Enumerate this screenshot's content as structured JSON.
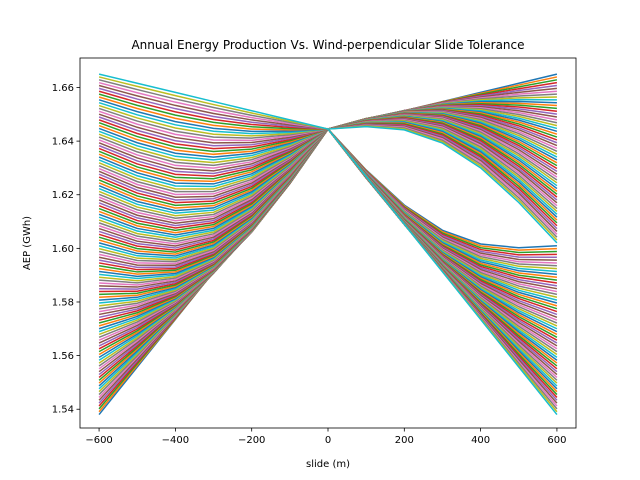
{
  "chart_data": {
    "type": "line",
    "title": "Annual Energy Production Vs. Wind-perpendicular Slide Tolerance",
    "xlabel": "slide (m)",
    "ylabel": "AEP (GWh)",
    "xlim": [
      -650,
      650
    ],
    "ylim": [
      1.533,
      1.671
    ],
    "xticks": [
      -600,
      -400,
      -200,
      0,
      200,
      400,
      600
    ],
    "yticks": [
      1.54,
      1.56,
      1.58,
      1.6,
      1.62,
      1.64,
      1.66
    ],
    "xtick_labels": [
      "−600",
      "−400",
      "−200",
      "0",
      "200",
      "400",
      "600"
    ],
    "ytick_labels": [
      "1.54",
      "1.56",
      "1.58",
      "1.60",
      "1.62",
      "1.64",
      "1.66"
    ],
    "grid": false,
    "legend": "none",
    "center_point": {
      "x": 0,
      "y": 1.6445
    },
    "x_sampling": [
      -600,
      -500,
      -400,
      -300,
      -200,
      -100,
      0,
      100,
      200,
      300,
      400,
      500,
      600
    ],
    "series_count": 120,
    "series_endpoint_range": {
      "x": [
        -600,
        600
      ],
      "y": [
        1.538,
        1.665
      ]
    },
    "series_description": "120 curves, each passing through the shared center point (0, 1.6445) and spanning endpoints from 1.538 to 1.665 GWh at x = ±600 m; left and right endpoints are paired in opposite order.",
    "palette": [
      "#1f77b4",
      "#ff7f0e",
      "#2ca02c",
      "#d62728",
      "#9467bd",
      "#8c564b",
      "#e377c2",
      "#7f7f7f",
      "#bcbd22",
      "#17becf"
    ]
  }
}
